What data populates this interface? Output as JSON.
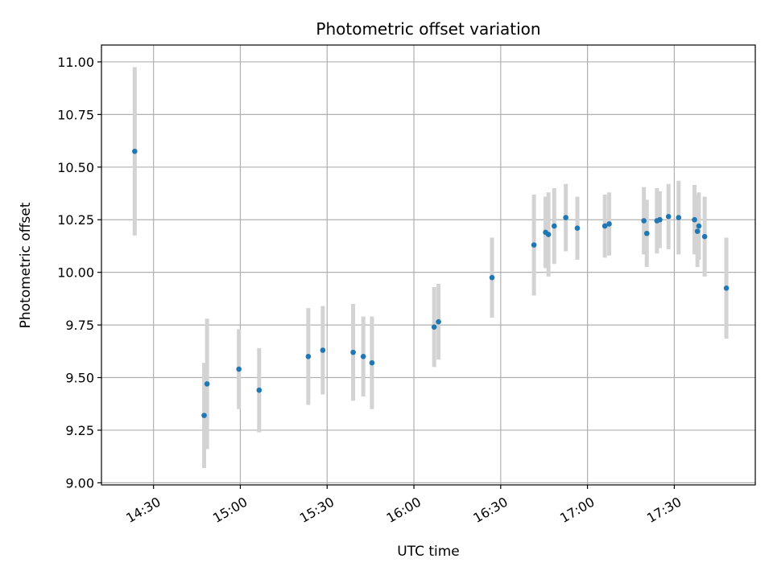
{
  "chart_data": {
    "type": "scatter",
    "title": "Photometric offset variation",
    "xlabel": "UTC time",
    "ylabel": "Photometric offset",
    "ylim": [
      8.99,
      11.08
    ],
    "xlim": [
      "14:12",
      "17:58"
    ],
    "y_ticks": [
      "9.00",
      "9.25",
      "9.50",
      "9.75",
      "10.00",
      "10.25",
      "10.50",
      "10.75",
      "11.00"
    ],
    "x_ticks": [
      "14:30",
      "15:00",
      "15:30",
      "16:00",
      "16:30",
      "17:00",
      "17:30"
    ],
    "grid": true,
    "colors": {
      "point": "#1f77b4",
      "errorbar": "#d3d3d3",
      "grid": "#b0b0b0"
    },
    "points": [
      {
        "x": "14:23:30",
        "y": 10.575,
        "err": 0.4
      },
      {
        "x": "14:47:30",
        "y": 9.32,
        "err": 0.25
      },
      {
        "x": "14:48:30",
        "y": 9.47,
        "err": 0.31
      },
      {
        "x": "14:59:30",
        "y": 9.54,
        "err": 0.19
      },
      {
        "x": "15:06:30",
        "y": 9.44,
        "err": 0.2
      },
      {
        "x": "15:23:30",
        "y": 9.6,
        "err": 0.23
      },
      {
        "x": "15:28:30",
        "y": 9.63,
        "err": 0.21
      },
      {
        "x": "15:39:00",
        "y": 9.62,
        "err": 0.23
      },
      {
        "x": "15:42:30",
        "y": 9.6,
        "err": 0.19
      },
      {
        "x": "15:45:30",
        "y": 9.57,
        "err": 0.22
      },
      {
        "x": "16:07:00",
        "y": 9.74,
        "err": 0.19
      },
      {
        "x": "16:08:30",
        "y": 9.765,
        "err": 0.18
      },
      {
        "x": "16:27:00",
        "y": 9.975,
        "err": 0.19
      },
      {
        "x": "16:41:30",
        "y": 10.13,
        "err": 0.24
      },
      {
        "x": "16:45:30",
        "y": 10.19,
        "err": 0.17
      },
      {
        "x": "16:46:30",
        "y": 10.18,
        "err": 0.2
      },
      {
        "x": "16:48:30",
        "y": 10.22,
        "err": 0.18
      },
      {
        "x": "16:52:30",
        "y": 10.26,
        "err": 0.16
      },
      {
        "x": "16:56:30",
        "y": 10.21,
        "err": 0.15
      },
      {
        "x": "17:06:00",
        "y": 10.22,
        "err": 0.15
      },
      {
        "x": "17:07:30",
        "y": 10.23,
        "err": 0.15
      },
      {
        "x": "17:19:30",
        "y": 10.245,
        "err": 0.16
      },
      {
        "x": "17:20:30",
        "y": 10.185,
        "err": 0.16
      },
      {
        "x": "17:24:00",
        "y": 10.245,
        "err": 0.155
      },
      {
        "x": "17:25:00",
        "y": 10.25,
        "err": 0.135
      },
      {
        "x": "17:28:00",
        "y": 10.265,
        "err": 0.155
      },
      {
        "x": "17:31:30",
        "y": 10.26,
        "err": 0.175
      },
      {
        "x": "17:37:00",
        "y": 10.25,
        "err": 0.165
      },
      {
        "x": "17:38:00",
        "y": 10.195,
        "err": 0.17
      },
      {
        "x": "17:38:30",
        "y": 10.22,
        "err": 0.16
      },
      {
        "x": "17:40:30",
        "y": 10.17,
        "err": 0.19
      },
      {
        "x": "17:48:00",
        "y": 9.925,
        "err": 0.24
      }
    ]
  }
}
